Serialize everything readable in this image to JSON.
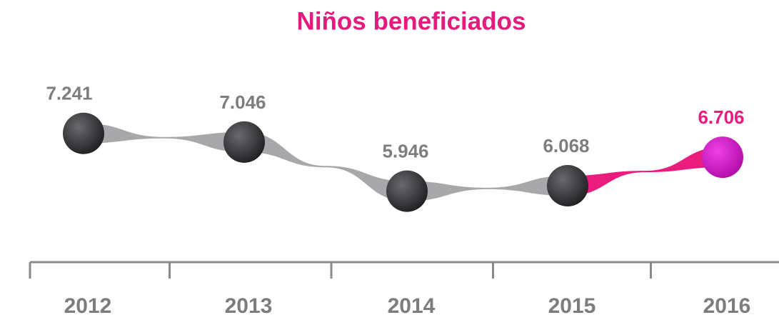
{
  "chart_data": {
    "type": "line",
    "title": "Niños beneficiados",
    "categories": [
      "2012",
      "2013",
      "2014",
      "2015",
      "2016"
    ],
    "series": [
      {
        "values": [
          7241,
          7046,
          5946,
          6068,
          6706
        ],
        "value_labels": [
          "7.241",
          "7.046",
          "5.946",
          "6.068",
          "6.706"
        ],
        "color": "#3c3c3e",
        "line_color": "#a8a8aa",
        "highlight_color": "#ea1c7e",
        "highlight_marker_color": "#d416c4"
      }
    ],
    "ylim": [
      4500,
      8500
    ]
  }
}
